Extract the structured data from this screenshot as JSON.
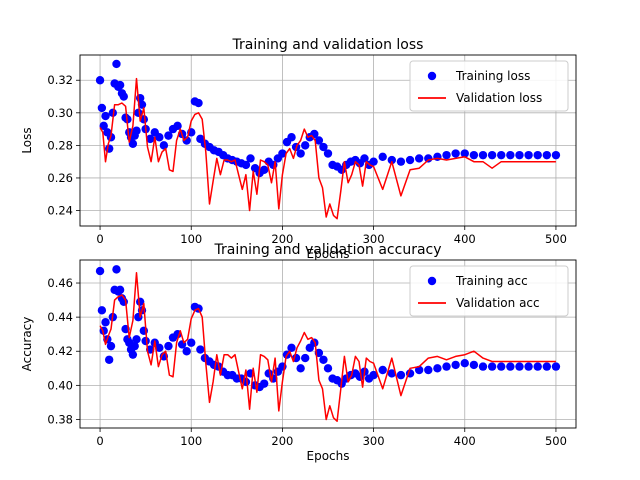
{
  "chart_data": [
    {
      "type": "line",
      "title": "Training and validation loss",
      "xlabel": "Epochs",
      "ylabel": "Loss",
      "xlim": [
        -22,
        522
      ],
      "ylim": [
        0.2305,
        0.3355
      ],
      "xticks": [
        0,
        100,
        200,
        300,
        400,
        500
      ],
      "yticks": [
        0.24,
        0.26,
        0.28,
        0.3,
        0.32
      ],
      "yticks_labels": [
        "0.24",
        "0.26",
        "0.28",
        "0.30",
        "0.32"
      ],
      "grid": true,
      "legend_position": "top-right",
      "legend": [
        "Training loss",
        "Validation loss"
      ],
      "series": [
        {
          "name": "Training loss",
          "style": "markers",
          "color": "#0000ff",
          "x": [
            0,
            2,
            4,
            6,
            8,
            10,
            12,
            14,
            16,
            18,
            20,
            22,
            24,
            26,
            28,
            30,
            32,
            34,
            36,
            38,
            40,
            42,
            44,
            46,
            48,
            50,
            55,
            60,
            65,
            70,
            75,
            80,
            85,
            90,
            95,
            100,
            104,
            108,
            110,
            115,
            120,
            125,
            130,
            135,
            140,
            145,
            150,
            155,
            160,
            165,
            170,
            175,
            180,
            185,
            190,
            195,
            200,
            205,
            210,
            215,
            220,
            225,
            230,
            235,
            240,
            245,
            250,
            255,
            260,
            265,
            270,
            275,
            280,
            285,
            290,
            295,
            300,
            310,
            320,
            330,
            340,
            350,
            360,
            370,
            380,
            390,
            400,
            410,
            420,
            430,
            440,
            450,
            460,
            470,
            480,
            490,
            500
          ],
          "values": [
            0.32,
            0.303,
            0.292,
            0.298,
            0.288,
            0.278,
            0.285,
            0.3,
            0.318,
            0.33,
            0.316,
            0.317,
            0.312,
            0.31,
            0.297,
            0.296,
            0.288,
            0.285,
            0.281,
            0.286,
            0.289,
            0.3,
            0.309,
            0.305,
            0.296,
            0.29,
            0.284,
            0.288,
            0.285,
            0.28,
            0.286,
            0.29,
            0.292,
            0.287,
            0.283,
            0.288,
            0.307,
            0.306,
            0.284,
            0.281,
            0.279,
            0.277,
            0.276,
            0.274,
            0.272,
            0.271,
            0.27,
            0.269,
            0.268,
            0.272,
            0.266,
            0.263,
            0.265,
            0.27,
            0.268,
            0.272,
            0.275,
            0.282,
            0.285,
            0.279,
            0.275,
            0.28,
            0.285,
            0.287,
            0.283,
            0.279,
            0.275,
            0.268,
            0.267,
            0.265,
            0.268,
            0.27,
            0.271,
            0.269,
            0.272,
            0.268,
            0.27,
            0.273,
            0.271,
            0.27,
            0.271,
            0.272,
            0.272,
            0.273,
            0.274,
            0.275,
            0.275,
            0.274,
            0.274,
            0.274,
            0.274,
            0.274,
            0.274,
            0.274,
            0.274,
            0.274,
            0.274
          ]
        },
        {
          "name": "Validation loss",
          "style": "line",
          "color": "#ff0000",
          "x": [
            0,
            3,
            6,
            9,
            12,
            16,
            20,
            24,
            28,
            32,
            36,
            40,
            44,
            48,
            52,
            56,
            60,
            64,
            68,
            72,
            76,
            80,
            84,
            88,
            92,
            96,
            100,
            104,
            108,
            112,
            116,
            120,
            124,
            128,
            132,
            136,
            140,
            144,
            148,
            152,
            156,
            160,
            164,
            168,
            172,
            176,
            180,
            184,
            188,
            192,
            196,
            200,
            204,
            208,
            212,
            216,
            220,
            224,
            228,
            232,
            236,
            240,
            244,
            248,
            252,
            256,
            260,
            264,
            268,
            272,
            276,
            280,
            284,
            288,
            292,
            296,
            300,
            310,
            320,
            330,
            340,
            350,
            360,
            370,
            380,
            390,
            400,
            410,
            420,
            430,
            440,
            450,
            460,
            470,
            480,
            490,
            500
          ],
          "values": [
            0.291,
            0.288,
            0.27,
            0.281,
            0.286,
            0.305,
            0.305,
            0.306,
            0.304,
            0.282,
            0.292,
            0.321,
            0.295,
            0.303,
            0.279,
            0.27,
            0.285,
            0.27,
            0.276,
            0.278,
            0.265,
            0.264,
            0.283,
            0.29,
            0.283,
            0.285,
            0.295,
            0.299,
            0.3,
            0.296,
            0.276,
            0.244,
            0.258,
            0.272,
            0.262,
            0.271,
            0.271,
            0.27,
            0.271,
            0.262,
            0.253,
            0.262,
            0.24,
            0.264,
            0.25,
            0.271,
            0.27,
            0.268,
            0.257,
            0.27,
            0.241,
            0.262,
            0.275,
            0.278,
            0.272,
            0.28,
            0.283,
            0.29,
            0.285,
            0.286,
            0.283,
            0.26,
            0.254,
            0.236,
            0.244,
            0.237,
            0.235,
            0.252,
            0.27,
            0.257,
            0.262,
            0.27,
            0.268,
            0.255,
            0.27,
            0.268,
            0.267,
            0.253,
            0.27,
            0.249,
            0.265,
            0.266,
            0.271,
            0.272,
            0.271,
            0.272,
            0.273,
            0.27,
            0.27,
            0.266,
            0.27,
            0.27,
            0.27,
            0.27,
            0.27,
            0.27,
            0.27
          ]
        }
      ]
    },
    {
      "type": "line",
      "title": "Training and validation accuracy",
      "xlabel": "Epochs",
      "ylabel": "Accuracy",
      "xlim": [
        -22,
        522
      ],
      "ylim": [
        0.375,
        0.4735
      ],
      "xticks": [
        0,
        100,
        200,
        300,
        400,
        500
      ],
      "yticks": [
        0.38,
        0.4,
        0.42,
        0.44,
        0.46
      ],
      "yticks_labels": [
        "0.38",
        "0.40",
        "0.42",
        "0.44",
        "0.46"
      ],
      "grid": true,
      "legend_position": "top-right",
      "legend": [
        "Training acc",
        "Validation acc"
      ],
      "series": [
        {
          "name": "Training acc",
          "style": "markers",
          "color": "#0000ff",
          "x": [
            0,
            2,
            4,
            6,
            8,
            10,
            12,
            14,
            16,
            18,
            20,
            22,
            24,
            26,
            28,
            30,
            32,
            34,
            36,
            38,
            40,
            42,
            44,
            46,
            48,
            50,
            55,
            60,
            65,
            70,
            75,
            80,
            85,
            90,
            95,
            100,
            104,
            108,
            110,
            115,
            120,
            125,
            130,
            135,
            140,
            145,
            150,
            155,
            160,
            165,
            170,
            175,
            180,
            185,
            190,
            195,
            200,
            205,
            210,
            215,
            220,
            225,
            230,
            235,
            240,
            245,
            250,
            255,
            260,
            265,
            270,
            275,
            280,
            285,
            290,
            295,
            300,
            310,
            320,
            330,
            340,
            350,
            360,
            370,
            380,
            390,
            400,
            410,
            420,
            430,
            440,
            450,
            460,
            470,
            480,
            490,
            500
          ],
          "values": [
            0.467,
            0.444,
            0.432,
            0.437,
            0.427,
            0.415,
            0.423,
            0.44,
            0.456,
            0.468,
            0.455,
            0.456,
            0.451,
            0.449,
            0.433,
            0.427,
            0.425,
            0.421,
            0.418,
            0.423,
            0.427,
            0.44,
            0.449,
            0.444,
            0.432,
            0.426,
            0.421,
            0.425,
            0.422,
            0.417,
            0.423,
            0.428,
            0.43,
            0.424,
            0.42,
            0.425,
            0.446,
            0.445,
            0.421,
            0.416,
            0.414,
            0.412,
            0.411,
            0.408,
            0.406,
            0.406,
            0.404,
            0.404,
            0.402,
            0.407,
            0.4,
            0.399,
            0.401,
            0.407,
            0.404,
            0.408,
            0.411,
            0.418,
            0.422,
            0.416,
            0.41,
            0.416,
            0.422,
            0.425,
            0.419,
            0.415,
            0.41,
            0.404,
            0.403,
            0.401,
            0.404,
            0.406,
            0.407,
            0.405,
            0.408,
            0.404,
            0.406,
            0.409,
            0.407,
            0.406,
            0.407,
            0.409,
            0.409,
            0.41,
            0.411,
            0.412,
            0.413,
            0.412,
            0.411,
            0.411,
            0.411,
            0.411,
            0.411,
            0.411,
            0.411,
            0.411,
            0.411
          ]
        },
        {
          "name": "Validation acc",
          "style": "line",
          "color": "#ff0000",
          "x": [
            0,
            3,
            6,
            9,
            12,
            16,
            20,
            24,
            28,
            32,
            36,
            40,
            44,
            48,
            52,
            56,
            60,
            64,
            68,
            72,
            76,
            80,
            84,
            88,
            92,
            96,
            100,
            104,
            108,
            112,
            116,
            120,
            124,
            128,
            132,
            136,
            140,
            144,
            148,
            152,
            156,
            160,
            164,
            168,
            172,
            176,
            180,
            184,
            188,
            192,
            196,
            200,
            204,
            208,
            212,
            216,
            220,
            224,
            228,
            232,
            236,
            240,
            244,
            248,
            252,
            256,
            260,
            264,
            268,
            272,
            276,
            280,
            284,
            288,
            292,
            296,
            300,
            310,
            320,
            330,
            340,
            350,
            360,
            370,
            380,
            390,
            400,
            410,
            420,
            430,
            440,
            450,
            460,
            470,
            480,
            490,
            500
          ],
          "values": [
            0.435,
            0.432,
            0.424,
            0.429,
            0.433,
            0.45,
            0.452,
            0.453,
            0.45,
            0.428,
            0.438,
            0.466,
            0.44,
            0.448,
            0.42,
            0.412,
            0.426,
            0.411,
            0.418,
            0.42,
            0.406,
            0.405,
            0.425,
            0.432,
            0.425,
            0.427,
            0.439,
            0.444,
            0.445,
            0.44,
            0.413,
            0.39,
            0.402,
            0.418,
            0.406,
            0.418,
            0.418,
            0.416,
            0.418,
            0.408,
            0.398,
            0.409,
            0.386,
            0.41,
            0.396,
            0.418,
            0.417,
            0.415,
            0.402,
            0.416,
            0.385,
            0.402,
            0.417,
            0.42,
            0.414,
            0.422,
            0.426,
            0.431,
            0.427,
            0.428,
            0.425,
            0.403,
            0.398,
            0.38,
            0.388,
            0.381,
            0.379,
            0.398,
            0.417,
            0.402,
            0.406,
            0.417,
            0.414,
            0.399,
            0.416,
            0.414,
            0.413,
            0.398,
            0.416,
            0.394,
            0.41,
            0.411,
            0.416,
            0.417,
            0.415,
            0.417,
            0.418,
            0.42,
            0.416,
            0.414,
            0.414,
            0.414,
            0.414,
            0.414,
            0.414,
            0.414,
            0.414
          ]
        }
      ]
    }
  ]
}
